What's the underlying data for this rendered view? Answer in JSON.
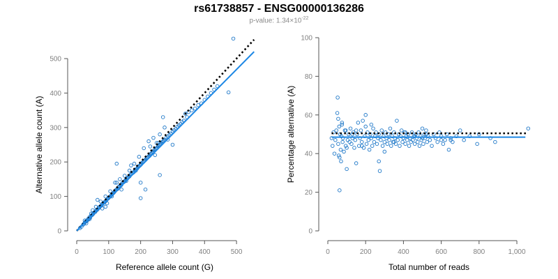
{
  "title": "rs61738857 - ENSG00000136286",
  "subtitle": {
    "prefix": "p-value: 1.34×10",
    "exponent": "-22"
  },
  "colors": {
    "points": "#1f78c8",
    "fit_line": "#1e88e5",
    "reference_line": "#000000",
    "axis": "#555555",
    "tick_text": "#808080"
  },
  "chart_data": [
    {
      "type": "scatter",
      "title": "",
      "xlabel": "Reference allele count (G)",
      "ylabel": "Alternative allele count (A)",
      "xlim": [
        0,
        550
      ],
      "ylim": [
        0,
        560
      ],
      "xticks": [
        0,
        100,
        200,
        300,
        400,
        500
      ],
      "yticks": [
        0,
        100,
        200,
        300,
        400,
        500
      ],
      "xtick_labels": [
        "0",
        "100",
        "200",
        "300",
        "400",
        "500"
      ],
      "ytick_labels": [
        "0",
        "100",
        "200",
        "300",
        "400",
        "500"
      ],
      "reference_line": {
        "style": "dotted",
        "from": [
          0,
          0
        ],
        "to": [
          555,
          555
        ]
      },
      "fit_line": {
        "from": [
          0,
          0
        ],
        "to": [
          555,
          520
        ]
      },
      "series": [
        {
          "name": "samples",
          "x": [
            10,
            15,
            20,
            22,
            25,
            28,
            30,
            33,
            35,
            38,
            40,
            42,
            45,
            48,
            50,
            52,
            55,
            58,
            60,
            62,
            65,
            68,
            70,
            72,
            75,
            78,
            80,
            82,
            85,
            88,
            90,
            92,
            95,
            98,
            100,
            102,
            105,
            108,
            110,
            112,
            115,
            118,
            120,
            122,
            125,
            128,
            130,
            132,
            135,
            138,
            140,
            142,
            145,
            148,
            150,
            152,
            155,
            158,
            160,
            162,
            165,
            168,
            170,
            172,
            175,
            178,
            180,
            182,
            185,
            188,
            190,
            192,
            195,
            198,
            200,
            202,
            205,
            208,
            210,
            212,
            215,
            218,
            220,
            222,
            225,
            228,
            230,
            232,
            235,
            238,
            240,
            242,
            245,
            248,
            250,
            252,
            255,
            258,
            260,
            262,
            265,
            268,
            270,
            272,
            275,
            280,
            285,
            290,
            295,
            300,
            305,
            310,
            315,
            320,
            325,
            330,
            335,
            340,
            345,
            350,
            360,
            370,
            380,
            390,
            400,
            410,
            420,
            430,
            440,
            475,
            490,
            30,
            45,
            60,
            75,
            90,
            105,
            120,
            135,
            150,
            165,
            180,
            195,
            210,
            225,
            240,
            255,
            270,
            285,
            300,
            200,
            215,
            230,
            245,
            260,
            275,
            185,
            170,
            155,
            140,
            125,
            110,
            95,
            80,
            65,
            50,
            40,
            25,
            200,
            250,
            260,
            125,
            90
          ],
          "y": [
            8,
            12,
            18,
            20,
            24,
            27,
            28,
            30,
            34,
            36,
            40,
            38,
            44,
            46,
            48,
            50,
            54,
            55,
            58,
            60,
            62,
            66,
            68,
            70,
            72,
            74,
            78,
            80,
            82,
            84,
            86,
            88,
            92,
            94,
            96,
            98,
            100,
            103,
            106,
            108,
            110,
            113,
            116,
            118,
            120,
            122,
            126,
            128,
            130,
            132,
            134,
            138,
            140,
            142,
            144,
            146,
            150,
            152,
            154,
            156,
            158,
            162,
            164,
            166,
            168,
            170,
            172,
            176,
            178,
            180,
            182,
            186,
            188,
            190,
            192,
            194,
            198,
            200,
            202,
            204,
            206,
            210,
            212,
            214,
            216,
            218,
            222,
            224,
            226,
            228,
            230,
            234,
            236,
            238,
            240,
            242,
            246,
            248,
            250,
            252,
            254,
            258,
            260,
            262,
            264,
            270,
            274,
            278,
            282,
            288,
            292,
            296,
            302,
            306,
            310,
            316,
            320,
            340,
            330,
            345,
            350,
            355,
            365,
            370,
            380,
            390,
            400,
            410,
            420,
            402,
            558,
            22,
            50,
            70,
            85,
            100,
            115,
            140,
            150,
            160,
            175,
            195,
            215,
            240,
            260,
            270,
            255,
            330,
            265,
            250,
            95,
            120,
            245,
            220,
            280,
            300,
            175,
            190,
            145,
            120,
            140,
            100,
            80,
            65,
            90,
            60,
            34,
            30,
            140,
            255,
            162,
            195,
            70
          ]
        }
      ]
    },
    {
      "type": "scatter",
      "title": "",
      "xlabel": "Total number of reads",
      "ylabel": "Percentage alternative (A)",
      "xlim": [
        0,
        1070
      ],
      "ylim": [
        0,
        100
      ],
      "xticks": [
        0,
        200,
        400,
        600,
        800,
        1000
      ],
      "yticks": [
        0,
        20,
        40,
        60,
        80,
        100
      ],
      "xtick_labels": [
        "0",
        "200",
        "400",
        "600",
        "800",
        "1,000"
      ],
      "ytick_labels": [
        "0",
        "20",
        "40",
        "60",
        "80",
        "100"
      ],
      "reference_line": {
        "style": "dotted",
        "y": 50.5
      },
      "fit_line": {
        "y": 48.5
      },
      "series": [
        {
          "name": "samples",
          "x": [
            20,
            25,
            30,
            35,
            40,
            45,
            50,
            52,
            55,
            58,
            60,
            62,
            65,
            68,
            70,
            72,
            75,
            78,
            80,
            85,
            90,
            95,
            100,
            105,
            110,
            115,
            120,
            125,
            130,
            135,
            140,
            145,
            150,
            155,
            160,
            165,
            170,
            175,
            180,
            185,
            190,
            195,
            200,
            205,
            210,
            215,
            220,
            225,
            230,
            235,
            240,
            245,
            250,
            255,
            260,
            265,
            270,
            275,
            280,
            285,
            290,
            295,
            300,
            305,
            310,
            315,
            320,
            325,
            330,
            335,
            340,
            345,
            350,
            355,
            360,
            365,
            370,
            375,
            380,
            385,
            390,
            395,
            400,
            405,
            410,
            415,
            420,
            425,
            430,
            435,
            440,
            445,
            450,
            455,
            460,
            465,
            470,
            475,
            480,
            485,
            490,
            495,
            500,
            505,
            510,
            515,
            520,
            525,
            530,
            540,
            550,
            560,
            570,
            580,
            590,
            600,
            610,
            620,
            630,
            640,
            650,
            660,
            680,
            700,
            720,
            750,
            790,
            800,
            860,
            885,
            1060,
            55,
            62,
            75,
            100,
            150,
            200,
            300,
            400,
            520,
            600,
            270,
            410,
            460,
            350,
            230,
            180,
            130,
            95,
            500,
            650
          ],
          "y": [
            48,
            44,
            51,
            40,
            47,
            52,
            61,
            69,
            45,
            39,
            54,
            21,
            50,
            42,
            36,
            49,
            55,
            46,
            48,
            41,
            52,
            44,
            32,
            47,
            50,
            46,
            53,
            45,
            48,
            51,
            43,
            47,
            35,
            50,
            56,
            44,
            48,
            52,
            46,
            57,
            43,
            49,
            60,
            45,
            51,
            47,
            42,
            50,
            48,
            44,
            53,
            46,
            49,
            51,
            45,
            48,
            50,
            31,
            47,
            52,
            44,
            49,
            46,
            51,
            48,
            45,
            50,
            47,
            53,
            44,
            49,
            46,
            51,
            48,
            45,
            57,
            47,
            50,
            44,
            49,
            52,
            46,
            48,
            51,
            45,
            49,
            47,
            50,
            44,
            48,
            46,
            51,
            47,
            49,
            45,
            50,
            48,
            46,
            51,
            44,
            49,
            47,
            53,
            45,
            50,
            48,
            52,
            46,
            49,
            47,
            44,
            50,
            48,
            46,
            51,
            49,
            45,
            47,
            50,
            42,
            48,
            46,
            49,
            52,
            47,
            49,
            45,
            50,
            48,
            46,
            53,
            58,
            38,
            56,
            43,
            52,
            54,
            41,
            48,
            50,
            47,
            36,
            51,
            49,
            46,
            55,
            44,
            50,
            52,
            48,
            47
          ]
        }
      ]
    }
  ]
}
